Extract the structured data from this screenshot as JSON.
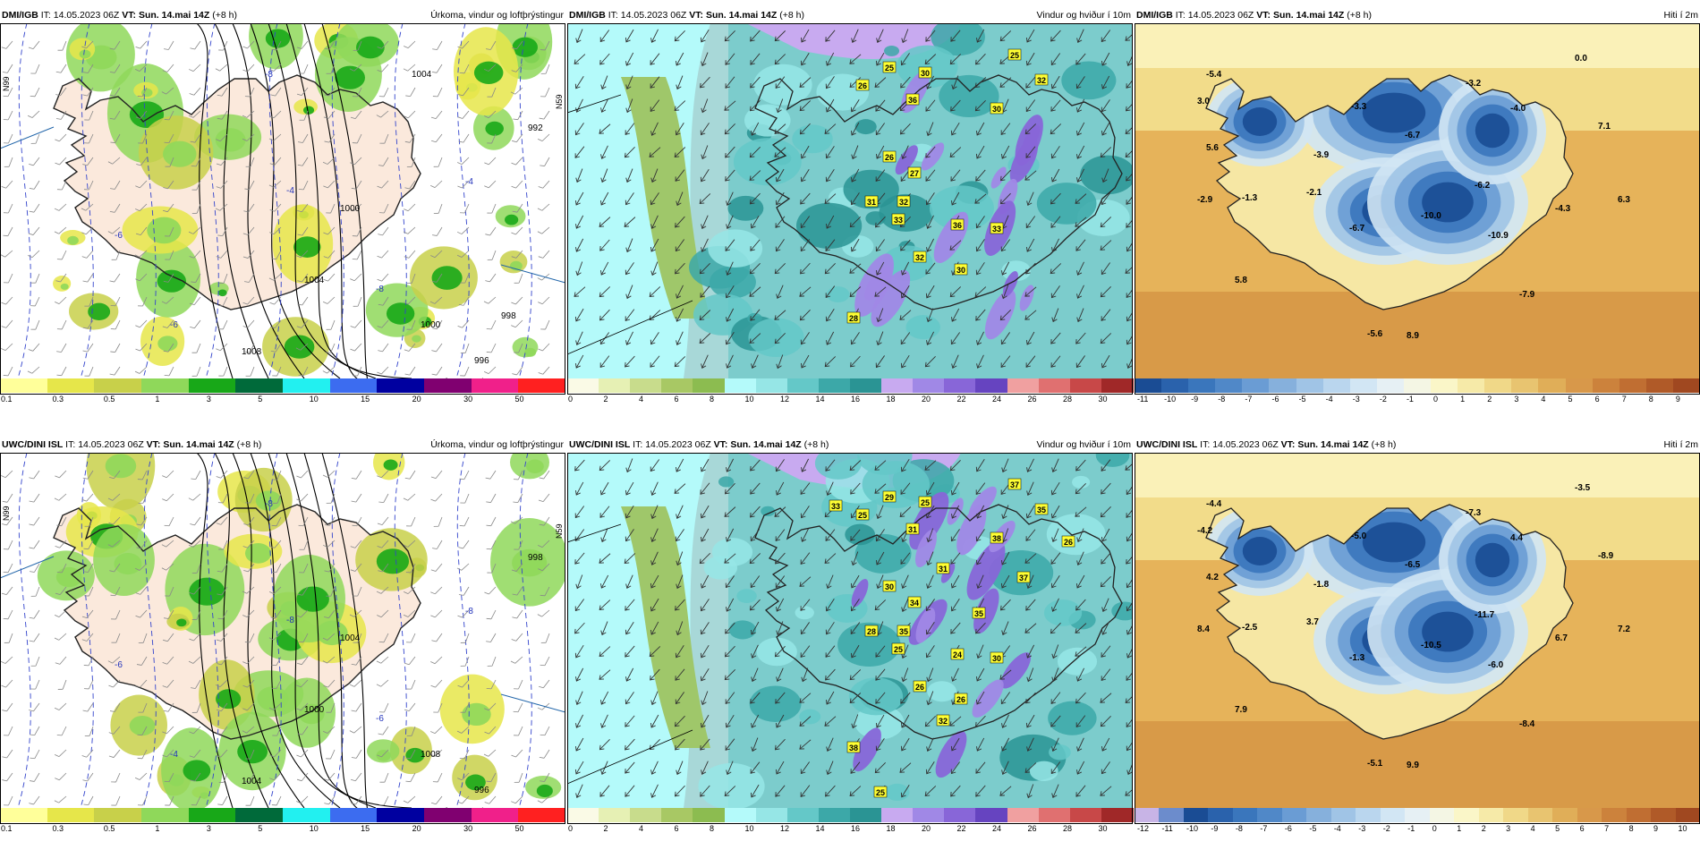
{
  "panels": [
    {
      "source": "DMI/IGB",
      "it_label": "IT:",
      "it": "14.05.2023 06Z",
      "vt_label": "VT:",
      "vt": "Sun. 14.mai 14Z",
      "lead": "(+8 h)",
      "title": "Úrkoma, vindur og loftþrýstingur",
      "type": "precip",
      "lat_label": "N99",
      "lat_label2": "N59",
      "scale": [
        "0.1",
        "0.3",
        "0.5",
        "1",
        "3",
        "5",
        "10",
        "15",
        "20",
        "30",
        "50"
      ],
      "colors": [
        "#ffff9a",
        "#e6e64a",
        "#c8d04a",
        "#8fd85a",
        "#18a818",
        "#006a3a",
        "#22f0f0",
        "#3c6cf0",
        "#0000a0",
        "#800070",
        "#f0208a",
        "#ff2020"
      ],
      "isobars": [
        "1000",
        "1004",
        "1008",
        "1000",
        "996",
        "992",
        "1004",
        "998"
      ],
      "temps": [
        "-8",
        "-6",
        "-8",
        "-4",
        "-6",
        "-4"
      ]
    },
    {
      "source": "DMI/IGB",
      "it_label": "IT:",
      "it": "14.05.2023 06Z",
      "vt_label": "VT:",
      "vt": "Sun. 14.mai 14Z",
      "lead": "(+8 h)",
      "title": "Vindur og hviður í 10m",
      "type": "wind",
      "scale": [
        "0",
        "2",
        "4",
        "6",
        "8",
        "10",
        "12",
        "14",
        "16",
        "18",
        "20",
        "22",
        "24",
        "26",
        "28",
        "30"
      ],
      "colors": [
        "#fafae6",
        "#e6f0b4",
        "#c8dc8c",
        "#a8c864",
        "#8cbc50",
        "#b4fafa",
        "#96e6e6",
        "#64c8c8",
        "#3ca8a8",
        "#2a9494",
        "#c8aaf0",
        "#a088e6",
        "#8866d8",
        "#6644c0",
        "#f0a0a0",
        "#e07070",
        "#c84848",
        "#a02828"
      ],
      "gusts": [
        "25",
        "30",
        "26",
        "36",
        "25",
        "32",
        "30",
        "26",
        "27",
        "31",
        "33",
        "36",
        "33",
        "32",
        "30",
        "32",
        "28"
      ]
    },
    {
      "source": "DMI/IGB",
      "it_label": "IT:",
      "it": "14.05.2023 06Z",
      "vt_label": "VT:",
      "vt": "Sun. 14.mai 14Z",
      "lead": "(+8 h)",
      "title": "Hiti í 2m",
      "type": "temp",
      "scale": [
        "-11",
        "-10",
        "-9",
        "-8",
        "-7",
        "-6",
        "-5",
        "-4",
        "-3",
        "-2",
        "-1",
        "0",
        "1",
        "2",
        "3",
        "4",
        "5",
        "6",
        "7",
        "8",
        "9"
      ],
      "colors": [
        "#1a4c94",
        "#2a62ac",
        "#3a76bc",
        "#5088c8",
        "#6a9cd4",
        "#86b0dc",
        "#a0c4e6",
        "#bad6ee",
        "#d2e6f4",
        "#e6f0f4",
        "#f4f6e4",
        "#faf6c8",
        "#f6eaa8",
        "#f0d888",
        "#e8c470",
        "#e0ae58",
        "#d8984a",
        "#cc823c",
        "#c06e32",
        "#b05a28",
        "#a04820"
      ],
      "temps": [
        "-5.4",
        "3.0",
        "5.6",
        "-1.3",
        "-2.9",
        "-3.9",
        "-2.1",
        "-3.3",
        "-6.7",
        "-3.2",
        "-4.0",
        "0.0",
        "7.1",
        "-10.0",
        "-6.7",
        "-6.2",
        "-10.9",
        "-4.3",
        "6.3",
        "5.8",
        "-7.9",
        "-5.6",
        "8.9"
      ]
    },
    {
      "source": "UWC/DINI ISL",
      "it_label": "IT:",
      "it": "14.05.2023 06Z",
      "vt_label": "VT:",
      "vt": "Sun. 14.mai 14Z",
      "lead": "(+8 h)",
      "title": "Úrkoma, vindur og loftþrýstingur",
      "type": "precip",
      "lat_label": "N99",
      "lat_label2": "N59",
      "scale": [
        "0.1",
        "0.3",
        "0.5",
        "1",
        "3",
        "5",
        "10",
        "15",
        "20",
        "30",
        "50"
      ],
      "colors": [
        "#ffff9a",
        "#e6e64a",
        "#c8d04a",
        "#8fd85a",
        "#18a818",
        "#006a3a",
        "#22f0f0",
        "#3c6cf0",
        "#0000a0",
        "#800070",
        "#f0208a",
        "#ff2020"
      ],
      "isobars": [
        "1004",
        "1000",
        "1004",
        "1008",
        "996",
        "998"
      ],
      "temps": [
        "-8",
        "-6",
        "-6",
        "-8",
        "-4",
        "-8"
      ]
    },
    {
      "source": "UWC/DINI ISL",
      "it_label": "IT:",
      "it": "14.05.2023 06Z",
      "vt_label": "VT:",
      "vt": "Sun. 14.mai 14Z",
      "lead": "(+8 h)",
      "title": "Vindur og hviður í 10m",
      "type": "wind",
      "scale": [
        "0",
        "2",
        "4",
        "6",
        "8",
        "10",
        "12",
        "14",
        "16",
        "18",
        "20",
        "22",
        "24",
        "26",
        "28",
        "30"
      ],
      "colors": [
        "#fafae6",
        "#e6f0b4",
        "#c8dc8c",
        "#a8c864",
        "#8cbc50",
        "#b4fafa",
        "#96e6e6",
        "#64c8c8",
        "#3ca8a8",
        "#2a9494",
        "#c8aaf0",
        "#a088e6",
        "#8866d8",
        "#6644c0",
        "#f0a0a0",
        "#e07070",
        "#c84848",
        "#a02828"
      ],
      "gusts": [
        "29",
        "25",
        "25",
        "31",
        "37",
        "35",
        "38",
        "30",
        "34",
        "28",
        "25",
        "24",
        "30",
        "26",
        "26",
        "35",
        "38",
        "32",
        "35",
        "33",
        "37",
        "26",
        "31",
        "25"
      ]
    },
    {
      "source": "UWC/DINI ISL",
      "it_label": "IT:",
      "it": "14.05.2023 06Z",
      "vt_label": "VT:",
      "vt": "Sun. 14.mai 14Z",
      "lead": "(+8 h)",
      "title": "Hiti í 2m",
      "type": "temp",
      "scale": [
        "-12",
        "-11",
        "-10",
        "-9",
        "-8",
        "-7",
        "-6",
        "-5",
        "-4",
        "-3",
        "-2",
        "-1",
        "0",
        "1",
        "2",
        "3",
        "4",
        "5",
        "6",
        "7",
        "8",
        "9",
        "10"
      ],
      "colors": [
        "#c8b4e6",
        "#6c8ccc",
        "#1a4c94",
        "#2a62ac",
        "#3a76bc",
        "#5088c8",
        "#6a9cd4",
        "#86b0dc",
        "#a0c4e6",
        "#bad6ee",
        "#d2e6f4",
        "#e6f0f4",
        "#f4f6e4",
        "#faf6c8",
        "#f6eaa8",
        "#f0d888",
        "#e8c470",
        "#e0ae58",
        "#d8984a",
        "#cc823c",
        "#c06e32",
        "#b05a28",
        "#a04820"
      ],
      "temps": [
        "-4.4",
        "-4.2",
        "4.2",
        "-2.5",
        "8.4",
        "-1.8",
        "3.7",
        "-5.0",
        "-6.5",
        "-7.3",
        "4.4",
        "-3.5",
        "-8.9",
        "-10.5",
        "-1.3",
        "-11.7",
        "-6.0",
        "6.7",
        "7.2",
        "7.9",
        "-8.4",
        "-5.1",
        "9.9"
      ]
    }
  ]
}
